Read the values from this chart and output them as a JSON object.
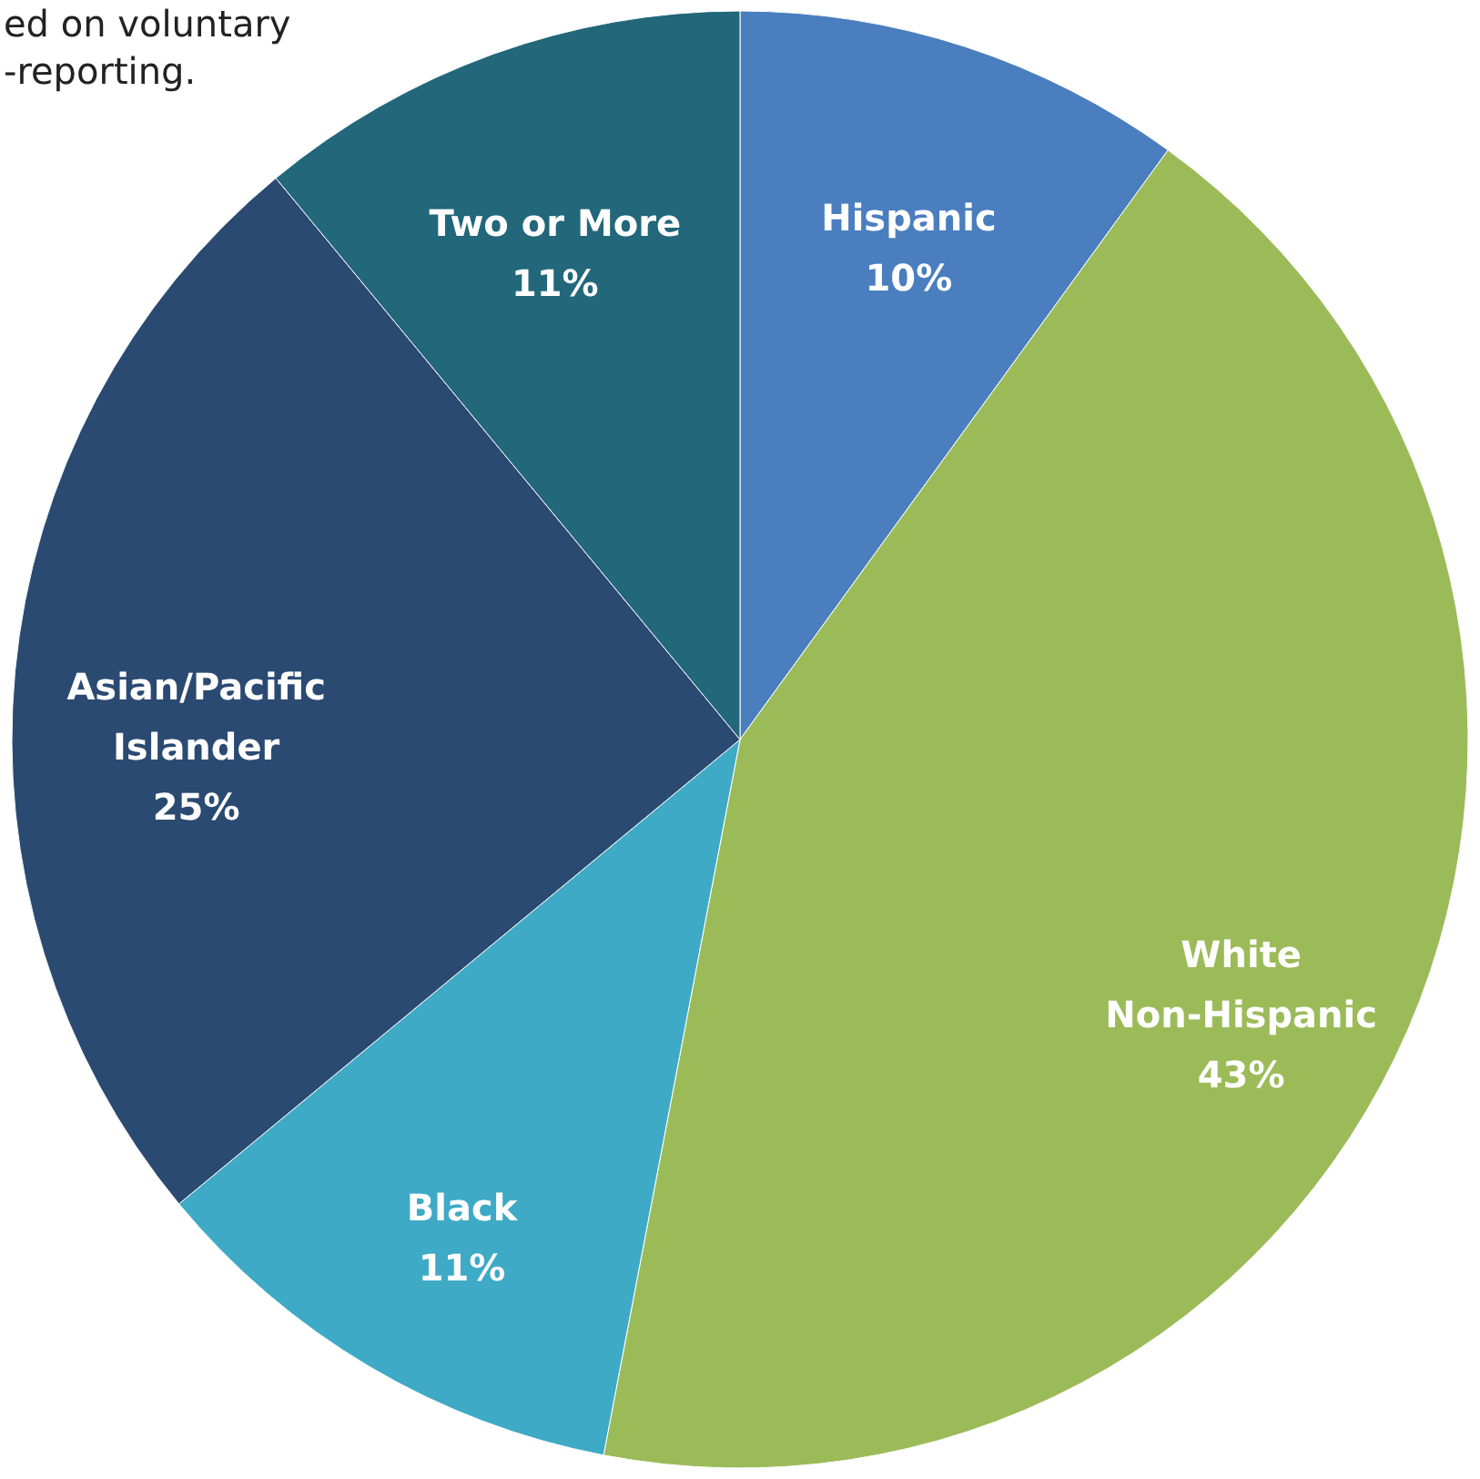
{
  "chart_data": {
    "type": "pie",
    "categories": [
      "Hispanic",
      "White Non-Hispanic",
      "Black",
      "Asian/Pacific Islander",
      "Two or More"
    ],
    "values": [
      10,
      43,
      11,
      25,
      11
    ],
    "value_labels": [
      "10%",
      "43%",
      "11%",
      "25%",
      "11%"
    ],
    "colors": [
      "#4a7ebf",
      "#9bbb59",
      "#3eaac6",
      "#2a4a72",
      "#22677a"
    ],
    "annotations": [
      "ed on voluntary\n-reporting."
    ]
  }
}
